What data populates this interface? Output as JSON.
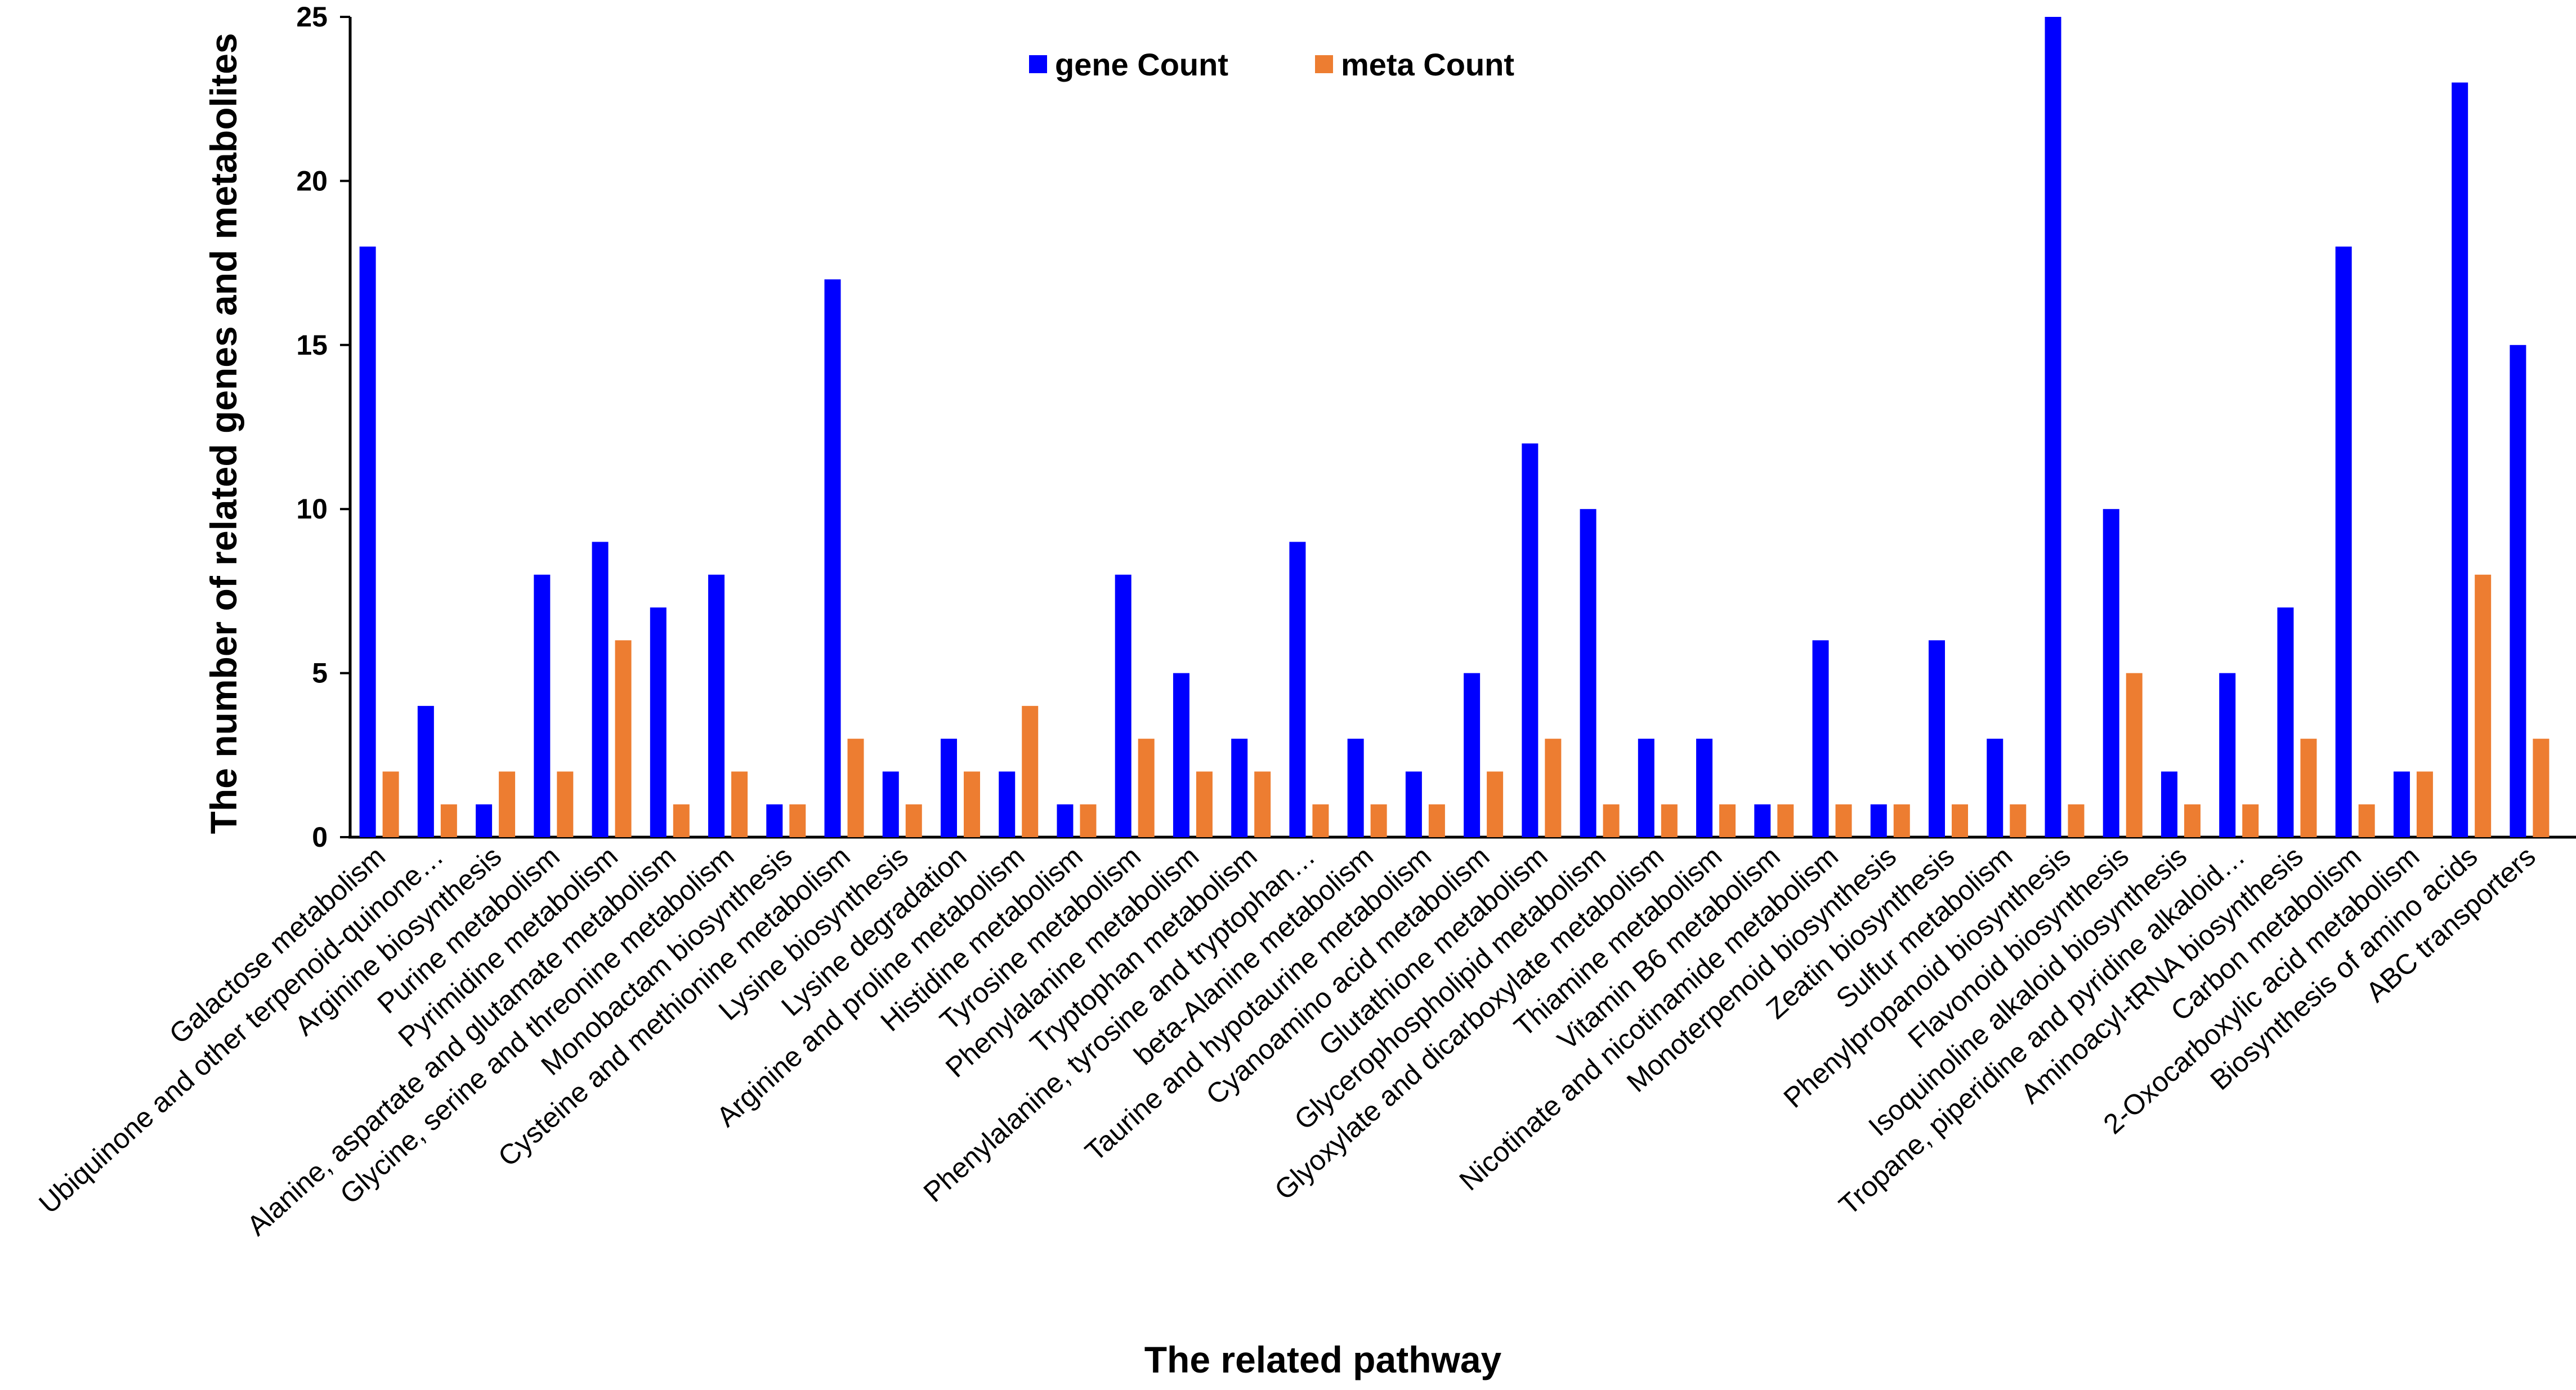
{
  "chart_data": {
    "type": "bar",
    "title": "",
    "xlabel": "The related pathway",
    "ylabel": "The number of related genes and metabolites",
    "ylim": [
      0,
      25
    ],
    "yticks": [
      0,
      5,
      10,
      15,
      20,
      25
    ],
    "grid": false,
    "legend_position": "top-center",
    "categories": [
      "Galactose metabolism",
      "Ubiquinone and other terpenoid-quinone…",
      "Arginine biosynthesis",
      "Purine metabolism",
      "Pyrimidine metabolism",
      "Alanine, aspartate and glutamate metabolism",
      "Glycine, serine and threonine metabolism",
      "Monobactam biosynthesis",
      "Cysteine and methionine metabolism",
      "Lysine biosynthesis",
      "Lysine degradation",
      "Arginine and proline metabolism",
      "Histidine metabolism",
      "Tyrosine metabolism",
      "Phenylalanine metabolism",
      "Tryptophan metabolism",
      "Phenylalanine, tyrosine and tryptophan…",
      "beta-Alanine metabolism",
      "Taurine and hypotaurine metabolism",
      "Cyanoamino acid metabolism",
      "Glutathione metabolism",
      "Glycerophospholipid metabolism",
      "Glyoxylate and dicarboxylate metabolism",
      "Thiamine metabolism",
      "Vitamin B6 metabolism",
      "Nicotinate and nicotinamide metabolism",
      "Monoterpenoid biosynthesis",
      "Zeatin biosynthesis",
      "Sulfur metabolism",
      "Phenylpropanoid biosynthesis",
      "Flavonoid biosynthesis",
      "Isoquinoline alkaloid biosynthesis",
      "Tropane, piperidine and pyridine alkaloid…",
      "Aminoacyl-tRNA biosynthesis",
      "Carbon metabolism",
      "2-Oxocarboxylic acid metabolism",
      "Biosynthesis of amino acids",
      "ABC transporters"
    ],
    "series": [
      {
        "name": "gene Count",
        "color": "#0000ff",
        "values": [
          18,
          4,
          1,
          8,
          9,
          7,
          8,
          1,
          17,
          2,
          3,
          2,
          1,
          8,
          5,
          3,
          9,
          3,
          2,
          5,
          12,
          10,
          3,
          3,
          1,
          6,
          1,
          6,
          3,
          25,
          10,
          2,
          5,
          7,
          18,
          2,
          23,
          15
        ]
      },
      {
        "name": "meta Count",
        "color": "#ed7d31",
        "values": [
          2,
          1,
          2,
          2,
          6,
          1,
          2,
          1,
          3,
          1,
          2,
          4,
          1,
          3,
          2,
          2,
          1,
          1,
          1,
          2,
          3,
          1,
          1,
          1,
          1,
          1,
          1,
          1,
          1,
          1,
          5,
          1,
          1,
          3,
          1,
          2,
          8,
          3
        ]
      }
    ]
  }
}
